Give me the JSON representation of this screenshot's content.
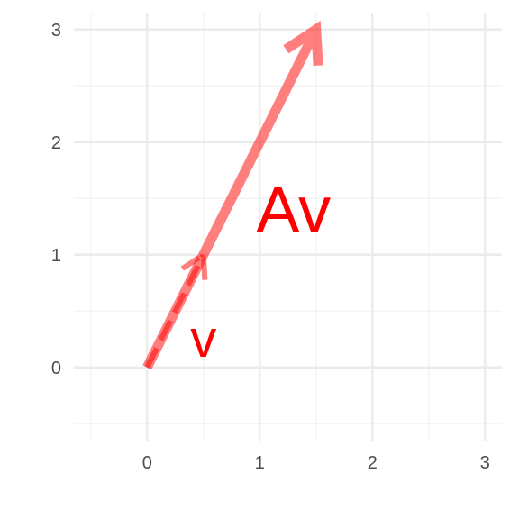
{
  "chart_data": {
    "type": "vector-plot",
    "title": "",
    "xlabel": "",
    "ylabel": "",
    "xlim": [
      -0.65,
      3.15
    ],
    "ylim": [
      -0.65,
      3.15
    ],
    "x_ticks": [
      0,
      1,
      2,
      3
    ],
    "y_ticks": [
      0,
      1,
      2,
      3
    ],
    "x_tick_labels": [
      "0",
      "1",
      "2",
      "3"
    ],
    "y_tick_labels": [
      "0",
      "1",
      "2",
      "3"
    ],
    "minor_x": [
      -0.5,
      0.5,
      1.5,
      2.5
    ],
    "minor_y": [
      -0.5,
      0.5,
      1.5,
      2.5
    ],
    "grid": true,
    "vectors": [
      {
        "label": "Av",
        "from": [
          0,
          0
        ],
        "to": [
          1.5,
          3
        ],
        "label_pos": [
          1.3,
          1.38
        ],
        "style": "solid",
        "color": "#ff0000",
        "opacity": 0.5
      },
      {
        "label": "v",
        "from": [
          0,
          0
        ],
        "to": [
          0.5,
          1
        ],
        "label_pos": [
          0.5,
          0.27
        ],
        "style": "dashed",
        "color": "#ff0000",
        "opacity": 0.5
      }
    ]
  }
}
